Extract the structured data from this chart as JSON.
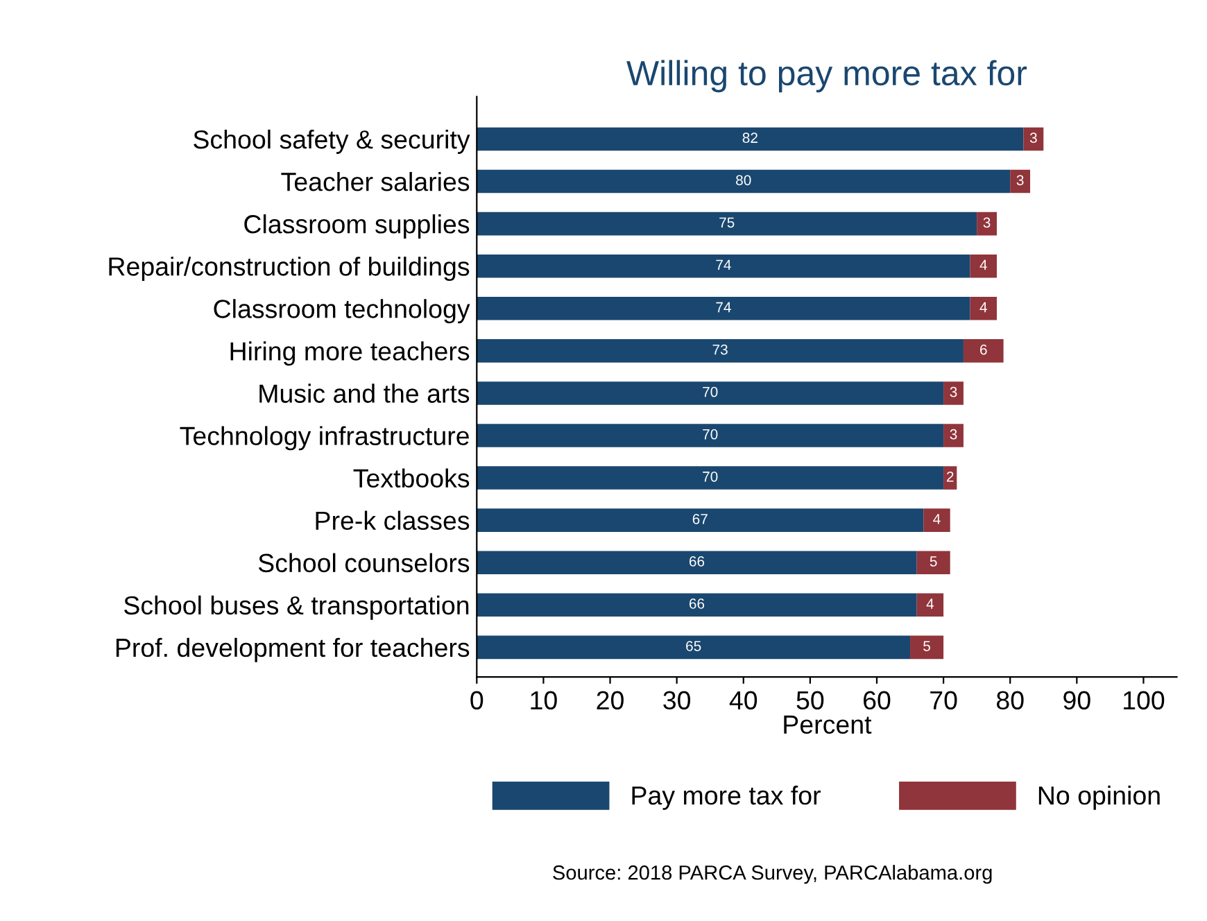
{
  "chart_data": {
    "type": "bar",
    "orientation": "horizontal",
    "stacked": true,
    "title": "Willing to pay more tax for",
    "xlabel": "Percent",
    "categories": [
      "School safety & security",
      "Teacher salaries",
      "Classroom supplies",
      "Repair/construction of buildings",
      "Classroom technology",
      "Hiring more teachers",
      "Music and the arts",
      "Technology infrastructure",
      "Textbooks",
      "Pre-k classes",
      "School counselors",
      "School buses & transportation",
      "Prof. development for teachers"
    ],
    "series": [
      {
        "name": "Pay more tax for",
        "color": "#1a476f",
        "values": [
          82,
          80,
          75,
          74,
          74,
          73,
          70,
          70,
          70,
          67,
          66,
          66,
          65
        ]
      },
      {
        "name": "No opinion",
        "color": "#90353b",
        "values": [
          3,
          3,
          3,
          4,
          4,
          6,
          3,
          3,
          2,
          4,
          5,
          4,
          5
        ]
      }
    ],
    "xlim": [
      0,
      105
    ],
    "xticks": [
      0,
      10,
      20,
      30,
      40,
      50,
      60,
      70,
      80,
      90,
      100
    ],
    "data_labels": true,
    "grid": false,
    "legend": "bottom",
    "annotations": [
      "Source: 2018 PARCA Survey, PARCAlabama.org"
    ]
  }
}
